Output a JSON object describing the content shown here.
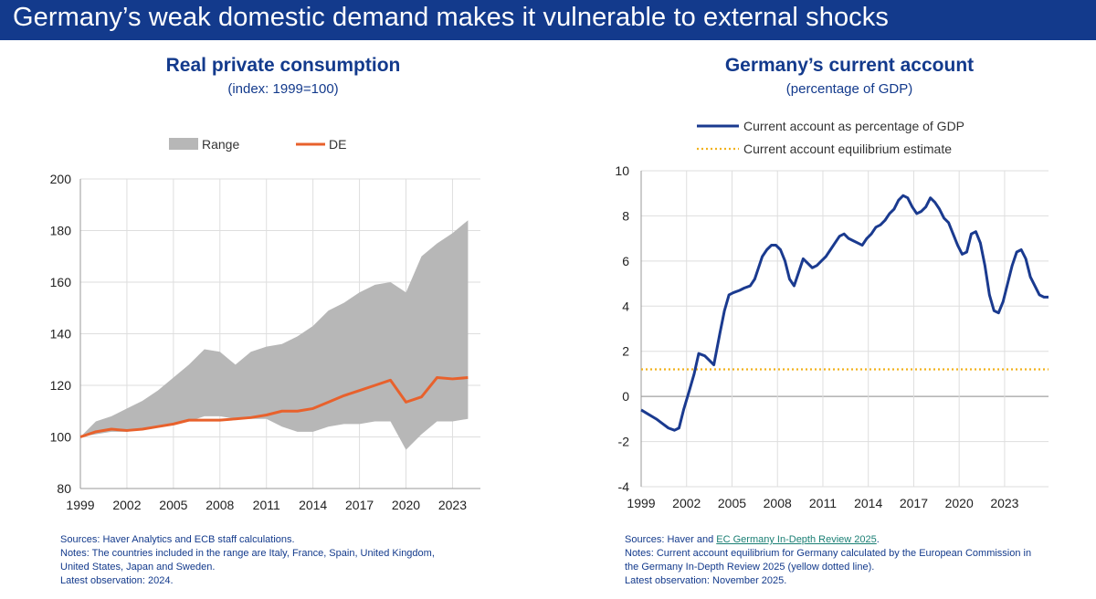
{
  "header": {
    "title": "Germany’s weak domestic demand makes it vulnerable to external shocks"
  },
  "colors": {
    "banner": "#133a8c",
    "range": "#b7b7b7",
    "de": "#e8612c",
    "ca": "#1a3a8f",
    "equilibrium": "#f2b21b",
    "text_blue": "#133a8c"
  },
  "left": {
    "title": "Real private consumption",
    "subtitle": "(index: 1999=100)",
    "sources": "Sources: Haver Analytics and ECB staff calculations.",
    "notes_line1": "Notes: The countries included in the range are Italy, France, Spain, United Kingdom,",
    "notes_line2": "United States, Japan and Sweden.",
    "latest": "Latest observation: 2024."
  },
  "right": {
    "title": "Germany’s current account",
    "subtitle": "(percentage of GDP)",
    "sources_prefix": "Sources: Haver and ",
    "sources_link": "EC Germany In-Depth Review 2025",
    "sources_suffix": ".",
    "notes_line1": "Notes: Current account equilibrium for Germany calculated by the European Commission in",
    "notes_line2": "the Germany In-Depth Review 2025 (yellow dotted line).",
    "latest": "Latest observation: November 2025."
  },
  "chart_data": [
    {
      "type": "area",
      "title": "Real private consumption",
      "subtitle": "(index: 1999=100)",
      "xlabel": "",
      "ylabel": "",
      "xlim": [
        1999,
        2024.8
      ],
      "ylim": [
        80,
        200
      ],
      "yticks": [
        80,
        100,
        120,
        140,
        160,
        180,
        200
      ],
      "xticks": [
        1999,
        2002,
        2005,
        2008,
        2011,
        2014,
        2017,
        2020,
        2023
      ],
      "grid": true,
      "legend_position": "top",
      "years": [
        1999,
        2000,
        2001,
        2002,
        2003,
        2004,
        2005,
        2006,
        2007,
        2008,
        2009,
        2010,
        2011,
        2012,
        2013,
        2014,
        2015,
        2016,
        2017,
        2018,
        2019,
        2020,
        2021,
        2022,
        2023,
        2024
      ],
      "series": [
        {
          "name": "Range",
          "kind": "band",
          "low": [
            100,
            101,
            102,
            102,
            103,
            104,
            105,
            106,
            108,
            108,
            107,
            107,
            107,
            104,
            102,
            102,
            104,
            105,
            105,
            106,
            106,
            95,
            101,
            106,
            106,
            107
          ],
          "high": [
            100,
            106,
            108,
            111,
            114,
            118,
            123,
            128,
            134,
            133,
            128,
            133,
            135,
            136,
            139,
            143,
            149,
            152,
            156,
            159,
            160,
            156,
            170,
            175,
            179,
            184
          ]
        },
        {
          "name": "DE",
          "kind": "line",
          "values": [
            100,
            102,
            103,
            102.5,
            103,
            104,
            105,
            106.5,
            106.5,
            106.5,
            107,
            107.5,
            108.5,
            110,
            110,
            111,
            113.5,
            116,
            118,
            120,
            122,
            113.5,
            115.5,
            123,
            122.5,
            123
          ]
        }
      ]
    },
    {
      "type": "line",
      "title": "Germany’s current account",
      "subtitle": "(percentage of GDP)",
      "xlabel": "",
      "ylabel": "",
      "xlim": [
        1999,
        2025.9
      ],
      "ylim": [
        -4,
        10
      ],
      "yticks": [
        -4,
        -2,
        0,
        2,
        4,
        6,
        8,
        10
      ],
      "xticks": [
        1999,
        2002,
        2005,
        2008,
        2011,
        2014,
        2017,
        2020,
        2023
      ],
      "grid": true,
      "legend_position": "top",
      "series": [
        {
          "name": "Current account as percentage of GDP",
          "kind": "line",
          "x": [
            1999.0,
            1999.5,
            2000.0,
            2000.4,
            2000.8,
            2001.2,
            2001.5,
            2001.8,
            2002.2,
            2002.5,
            2002.8,
            2003.2,
            2003.5,
            2003.8,
            2004.2,
            2004.5,
            2004.8,
            2005.1,
            2005.5,
            2005.8,
            2006.2,
            2006.5,
            2006.8,
            2007.0,
            2007.3,
            2007.6,
            2007.9,
            2008.2,
            2008.5,
            2008.8,
            2009.1,
            2009.4,
            2009.7,
            2010.0,
            2010.3,
            2010.6,
            2010.9,
            2011.2,
            2011.5,
            2011.8,
            2012.1,
            2012.4,
            2012.7,
            2013.0,
            2013.3,
            2013.6,
            2013.9,
            2014.2,
            2014.5,
            2014.8,
            2015.1,
            2015.4,
            2015.7,
            2016.0,
            2016.3,
            2016.6,
            2016.9,
            2017.2,
            2017.5,
            2017.8,
            2018.1,
            2018.4,
            2018.7,
            2019.0,
            2019.3,
            2019.6,
            2019.9,
            2020.2,
            2020.5,
            2020.8,
            2021.1,
            2021.4,
            2021.7,
            2022.0,
            2022.3,
            2022.6,
            2022.9,
            2023.2,
            2023.5,
            2023.8,
            2024.1,
            2024.4,
            2024.7,
            2025.0,
            2025.3,
            2025.6,
            2025.9
          ],
          "values": [
            -0.6,
            -0.8,
            -1.0,
            -1.2,
            -1.4,
            -1.5,
            -1.4,
            -0.6,
            0.3,
            1.0,
            1.9,
            1.8,
            1.6,
            1.4,
            2.8,
            3.8,
            4.5,
            4.6,
            4.7,
            4.8,
            4.9,
            5.2,
            5.8,
            6.2,
            6.5,
            6.7,
            6.7,
            6.5,
            6.0,
            5.2,
            4.9,
            5.5,
            6.1,
            5.9,
            5.7,
            5.8,
            6.0,
            6.2,
            6.5,
            6.8,
            7.1,
            7.2,
            7.0,
            6.9,
            6.8,
            6.7,
            7.0,
            7.2,
            7.5,
            7.6,
            7.8,
            8.1,
            8.3,
            8.7,
            8.9,
            8.8,
            8.4,
            8.1,
            8.2,
            8.4,
            8.8,
            8.6,
            8.3,
            7.9,
            7.7,
            7.2,
            6.7,
            6.3,
            6.4,
            7.2,
            7.3,
            6.8,
            5.8,
            4.5,
            3.8,
            3.7,
            4.2,
            5.0,
            5.8,
            6.4,
            6.5,
            6.1,
            5.3,
            4.9,
            4.5,
            4.4,
            4.4
          ]
        },
        {
          "name": "Current account equilibrium estimate",
          "kind": "hline",
          "value": 1.2
        }
      ]
    }
  ]
}
